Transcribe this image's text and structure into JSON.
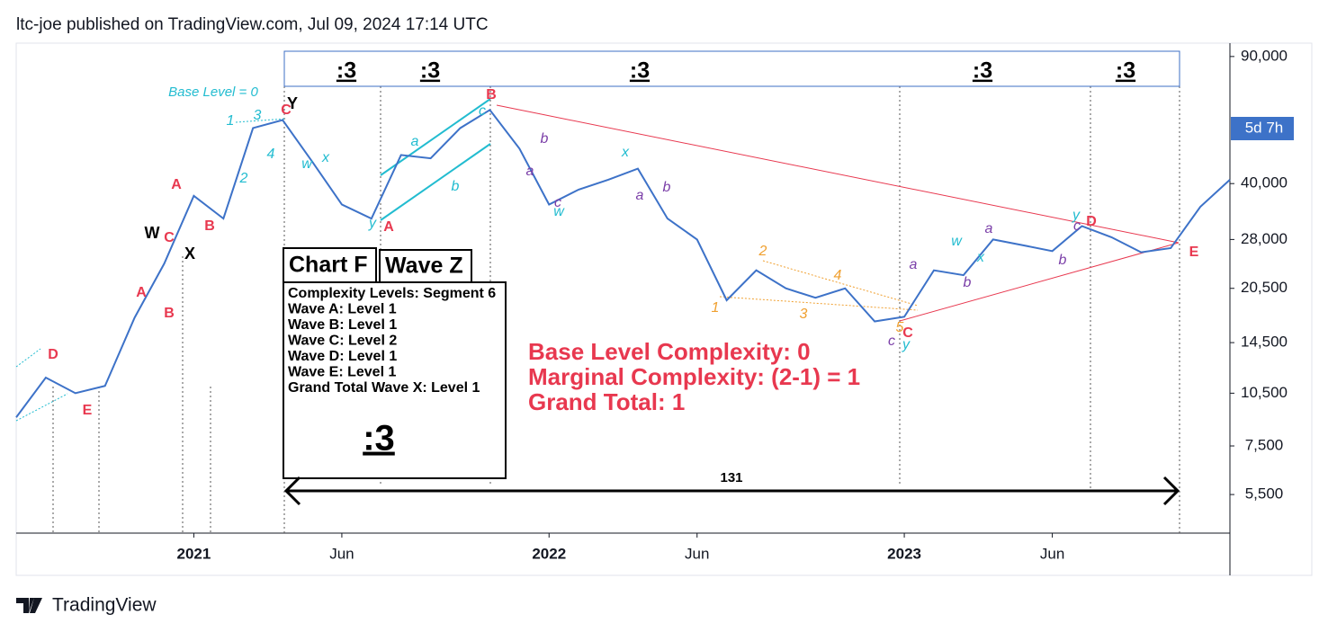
{
  "header": "ltc-joe published on TradingView.com, Jul 09, 2024 17:14 UTC",
  "footer": "TradingView",
  "chart_data": {
    "type": "line",
    "x": [
      "2020-07",
      "2020-08",
      "2020-09",
      "2020-10",
      "2020-11",
      "2020-12",
      "2021-01",
      "2021-02",
      "2021-03",
      "2021-04",
      "2021-05",
      "2021-06",
      "2021-07",
      "2021-08",
      "2021-09",
      "2021-10",
      "2021-11",
      "2021-12",
      "2022-01",
      "2022-02",
      "2022-03",
      "2022-04",
      "2022-05",
      "2022-06",
      "2022-07",
      "2022-08",
      "2022-09",
      "2022-10",
      "2022-11",
      "2022-12",
      "2023-01",
      "2023-02",
      "2023-03",
      "2023-04",
      "2023-05",
      "2023-06",
      "2023-07",
      "2023-08",
      "2023-09",
      "2023-10",
      "2023-11",
      "2023-12"
    ],
    "series": [
      {
        "name": "Price",
        "color": "#3d72c8",
        "values": [
          9000,
          11600,
          10500,
          11000,
          17000,
          24000,
          37000,
          32000,
          57000,
          60000,
          46000,
          35000,
          32000,
          48000,
          47000,
          57000,
          64000,
          50000,
          35000,
          38500,
          41000,
          44000,
          32000,
          28000,
          19000,
          23000,
          20500,
          19300,
          20500,
          16600,
          17100,
          23000,
          22300,
          28000,
          27000,
          26000,
          30500,
          28400,
          25800,
          26500,
          34500,
          41000
        ]
      }
    ],
    "xlim": [
      "2020-07",
      "2023-12"
    ],
    "xticks": [
      {
        "value": "2021-01",
        "label": "2021"
      },
      {
        "value": "2021-06",
        "label": "Jun"
      },
      {
        "value": "2022-01",
        "label": "2022"
      },
      {
        "value": "2022-06",
        "label": "Jun"
      },
      {
        "value": "2023-01",
        "label": "2023"
      },
      {
        "value": "2023-06",
        "label": "Jun"
      }
    ],
    "ylim": [
      4300,
      98000
    ],
    "log": true,
    "yticks": [
      {
        "value": 5500,
        "label": "5,500"
      },
      {
        "value": 7500,
        "label": "7,500"
      },
      {
        "value": 10500,
        "label": "10,500"
      },
      {
        "value": 14500,
        "label": "14,500"
      },
      {
        "value": 20500,
        "label": "20,500"
      },
      {
        "value": 28000,
        "label": "28,000"
      },
      {
        "value": 40000,
        "label": "40,000"
      },
      {
        "value": 90000,
        "label": "90,000"
      }
    ],
    "price_badge": "5d 7h",
    "box_labels": [
      ":3",
      ":3",
      ":3",
      ":3",
      ":3"
    ],
    "info_box": {
      "chart": "Chart F",
      "wave": "Wave Z",
      "lines": [
        "Complexity Levels: Segment 6",
        "Wave A: Level 1",
        "Wave B: Level 1",
        "Wave C: Level 2",
        "Wave D: Level 1",
        "Wave E: Level 1",
        "Grand Total Wave X: Level 1"
      ],
      "total": ":3"
    },
    "complexity": [
      "Base Level Complexity: 0",
      "Marginal Complexity: (2-1) = 1",
      "Grand Total: 1"
    ],
    "span_label": "131",
    "base_level": "Base Level = 0",
    "wave_labels": [
      "D",
      "E",
      "A",
      "B",
      "C",
      "A",
      "B",
      "C",
      "B",
      "A",
      "C",
      "D",
      "E",
      "W",
      "X",
      "Y",
      "1",
      "3",
      "2",
      "4",
      "w",
      "x",
      "y",
      "a",
      "b",
      "c",
      "x",
      "w",
      "w",
      "x",
      "y",
      "y",
      "a",
      "b",
      "c",
      "a",
      "b",
      "a",
      "b",
      "a",
      "b",
      "c",
      "c",
      "1",
      "2",
      "3",
      "4",
      "5"
    ]
  }
}
